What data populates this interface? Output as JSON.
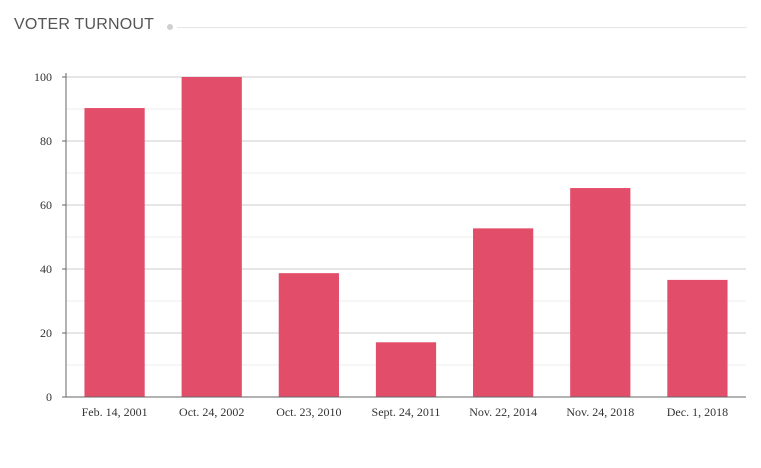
{
  "header": {
    "title": "VOTER TURNOUT"
  },
  "colors": {
    "bar": "#e24d69",
    "grid_major": "#cccccc",
    "grid_minor": "#ececec",
    "axis": "#666666",
    "title": "#555555"
  },
  "chart_data": {
    "type": "bar",
    "title": "VOTER TURNOUT",
    "xlabel": "",
    "ylabel": "",
    "categories": [
      "Feb. 14, 2001",
      "Oct. 24, 2002",
      "Oct. 23, 2010",
      "Sept. 24, 2011",
      "Nov. 22, 2014",
      "Nov. 24, 2018",
      "Dec. 1, 2018"
    ],
    "values": [
      90.3,
      100,
      38.7,
      17.1,
      52.7,
      65.3,
      36.6
    ],
    "ylim": [
      0,
      100
    ],
    "yticks": [
      0,
      20,
      40,
      60,
      80,
      100
    ],
    "grid": true,
    "legend": "none"
  }
}
